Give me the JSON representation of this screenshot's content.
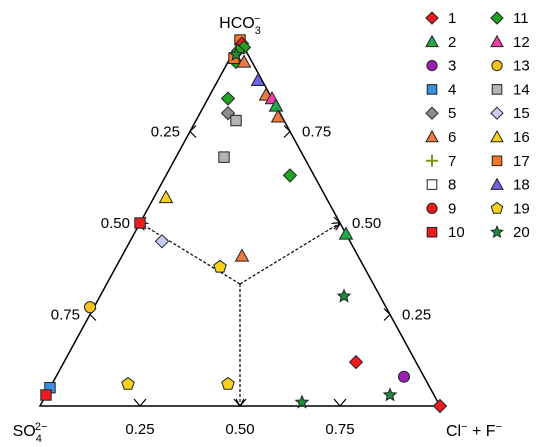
{
  "chart_data": {
    "type": "scatter",
    "subtype": "ternary",
    "title": "",
    "vertices": {
      "top": {
        "base": "HCO",
        "sub": "3",
        "sup": "−"
      },
      "left": {
        "base": "SO",
        "sub": "4",
        "sup": "2−"
      },
      "right": {
        "parts": [
          {
            "base": "Cl",
            "sup": "−"
          },
          {
            "base": " + F",
            "sup": "−"
          }
        ]
      }
    },
    "bottom_ticks": [
      "0.25",
      "0.50",
      "0.75"
    ],
    "left_ticks": [
      "0.25",
      "0.50",
      "0.75"
    ],
    "right_ticks": [
      "0.75",
      "0.50",
      "0.25"
    ],
    "legend": [
      {
        "label": "1",
        "marker": "diamond",
        "color": "#ee1c1c"
      },
      {
        "label": "2",
        "marker": "triangle",
        "color": "#22a84a"
      },
      {
        "label": "3",
        "marker": "circle",
        "color": "#9b1fb4"
      },
      {
        "label": "4",
        "marker": "square",
        "color": "#3a8ee6"
      },
      {
        "label": "5",
        "marker": "diamond",
        "color": "#8c8c8c"
      },
      {
        "label": "6",
        "marker": "triangle",
        "color": "#ee7744"
      },
      {
        "label": "7",
        "marker": "plus",
        "color": "#8c8c1e"
      },
      {
        "label": "8",
        "marker": "square",
        "color": "#ffffff"
      },
      {
        "label": "9",
        "marker": "circle",
        "color": "#ee1c1c"
      },
      {
        "label": "10",
        "marker": "square",
        "color": "#ee1c1c"
      },
      {
        "label": "11",
        "marker": "diamond",
        "color": "#22a022"
      },
      {
        "label": "12",
        "marker": "triangle",
        "color": "#ee3ca8"
      },
      {
        "label": "13",
        "marker": "circle",
        "color": "#f6c21d"
      },
      {
        "label": "14",
        "marker": "square",
        "color": "#b4b4b4"
      },
      {
        "label": "15",
        "marker": "diamond",
        "color": "#c8cdf0"
      },
      {
        "label": "16",
        "marker": "triangle",
        "color": "#f6d21d"
      },
      {
        "label": "17",
        "marker": "square",
        "color": "#f57724"
      },
      {
        "label": "18",
        "marker": "triangle",
        "color": "#6c63e0"
      },
      {
        "label": "19",
        "marker": "pentagon",
        "color": "#f6d21d"
      },
      {
        "label": "20",
        "marker": "star",
        "color": "#1e8c3c"
      }
    ],
    "points": [
      {
        "series": "17",
        "a": 0.0,
        "b": 1.0
      },
      {
        "series": "1",
        "a": 0.0,
        "b": 0.99
      },
      {
        "series": "11",
        "a": 0.0,
        "b": 0.98
      },
      {
        "series": "11",
        "a": 0.02,
        "b": 0.97
      },
      {
        "series": "11",
        "a": 0.04,
        "b": 0.94
      },
      {
        "series": "17",
        "a": 0.04,
        "b": 0.95
      },
      {
        "series": "6",
        "a": 0.02,
        "b": 0.94
      },
      {
        "series": "20",
        "a": 0.03,
        "b": 0.96
      },
      {
        "series": "18",
        "a": 0.01,
        "b": 0.89
      },
      {
        "series": "6",
        "a": 0.01,
        "b": 0.85
      },
      {
        "series": "12",
        "a": 0.0,
        "b": 0.84
      },
      {
        "series": "2",
        "a": 0.0,
        "b": 0.82
      },
      {
        "series": "6",
        "a": 0.01,
        "b": 0.79
      },
      {
        "series": "11",
        "a": 0.11,
        "b": 0.84
      },
      {
        "series": "5",
        "a": 0.13,
        "b": 0.8
      },
      {
        "series": "14",
        "a": 0.12,
        "b": 0.78
      },
      {
        "series": "14",
        "a": 0.2,
        "b": 0.68
      },
      {
        "series": "11",
        "a": 0.06,
        "b": 0.63
      },
      {
        "series": "16",
        "a": 0.4,
        "b": 0.57
      },
      {
        "series": "10",
        "a": 0.5,
        "b": 0.5
      },
      {
        "series": "15",
        "a": 0.47,
        "b": 0.45
      },
      {
        "series": "6",
        "a": 0.29,
        "b": 0.41
      },
      {
        "series": "19",
        "a": 0.36,
        "b": 0.38
      },
      {
        "series": "13",
        "a": 0.74,
        "b": 0.27
      },
      {
        "series": "4",
        "a": 0.95,
        "b": 0.05
      },
      {
        "series": "10",
        "a": 0.97,
        "b": 0.03
      },
      {
        "series": "19",
        "a": 0.75,
        "b": 0.06
      },
      {
        "series": "19",
        "a": 0.5,
        "b": 0.06
      },
      {
        "series": "2",
        "a": 0.0,
        "b": 0.47
      },
      {
        "series": "20",
        "a": 0.09,
        "b": 0.3
      },
      {
        "series": "1",
        "a": 0.15,
        "b": 0.12
      },
      {
        "series": "3",
        "a": 0.05,
        "b": 0.08
      },
      {
        "series": "20",
        "a": 0.11,
        "b": 0.03
      },
      {
        "series": "20",
        "a": 0.34,
        "b": 0.01
      },
      {
        "series": "1",
        "a": 0.0,
        "b": 0.0
      }
    ]
  }
}
